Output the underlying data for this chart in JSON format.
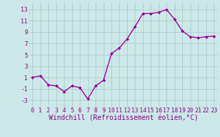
{
  "x": [
    0,
    1,
    2,
    3,
    4,
    5,
    6,
    7,
    8,
    9,
    10,
    11,
    12,
    13,
    14,
    15,
    16,
    17,
    18,
    19,
    20,
    21,
    22,
    23
  ],
  "y": [
    1,
    1.3,
    -0.3,
    -0.5,
    -1.5,
    -0.5,
    -0.8,
    -2.8,
    -0.5,
    0.5,
    5.2,
    6.2,
    7.8,
    10.0,
    12.3,
    12.3,
    12.5,
    13.0,
    11.3,
    9.2,
    8.2,
    8.0,
    8.2,
    8.3
  ],
  "line_color": "#990099",
  "marker": "D",
  "marker_size": 2,
  "bg_color": "#cce8e8",
  "grid_color": "#aacccc",
  "xlabel": "Windchill (Refroidissement éolien,°C)",
  "xlabel_color": "#880088",
  "ylabel_ticks": [
    -3,
    -1,
    1,
    3,
    5,
    7,
    9,
    11,
    13
  ],
  "xlim": [
    -0.5,
    23.5
  ],
  "ylim": [
    -4.2,
    14.2
  ],
  "tick_label_color": "#880088",
  "tick_label_fontsize": 6,
  "xlabel_fontsize": 7,
  "linewidth": 1.0
}
